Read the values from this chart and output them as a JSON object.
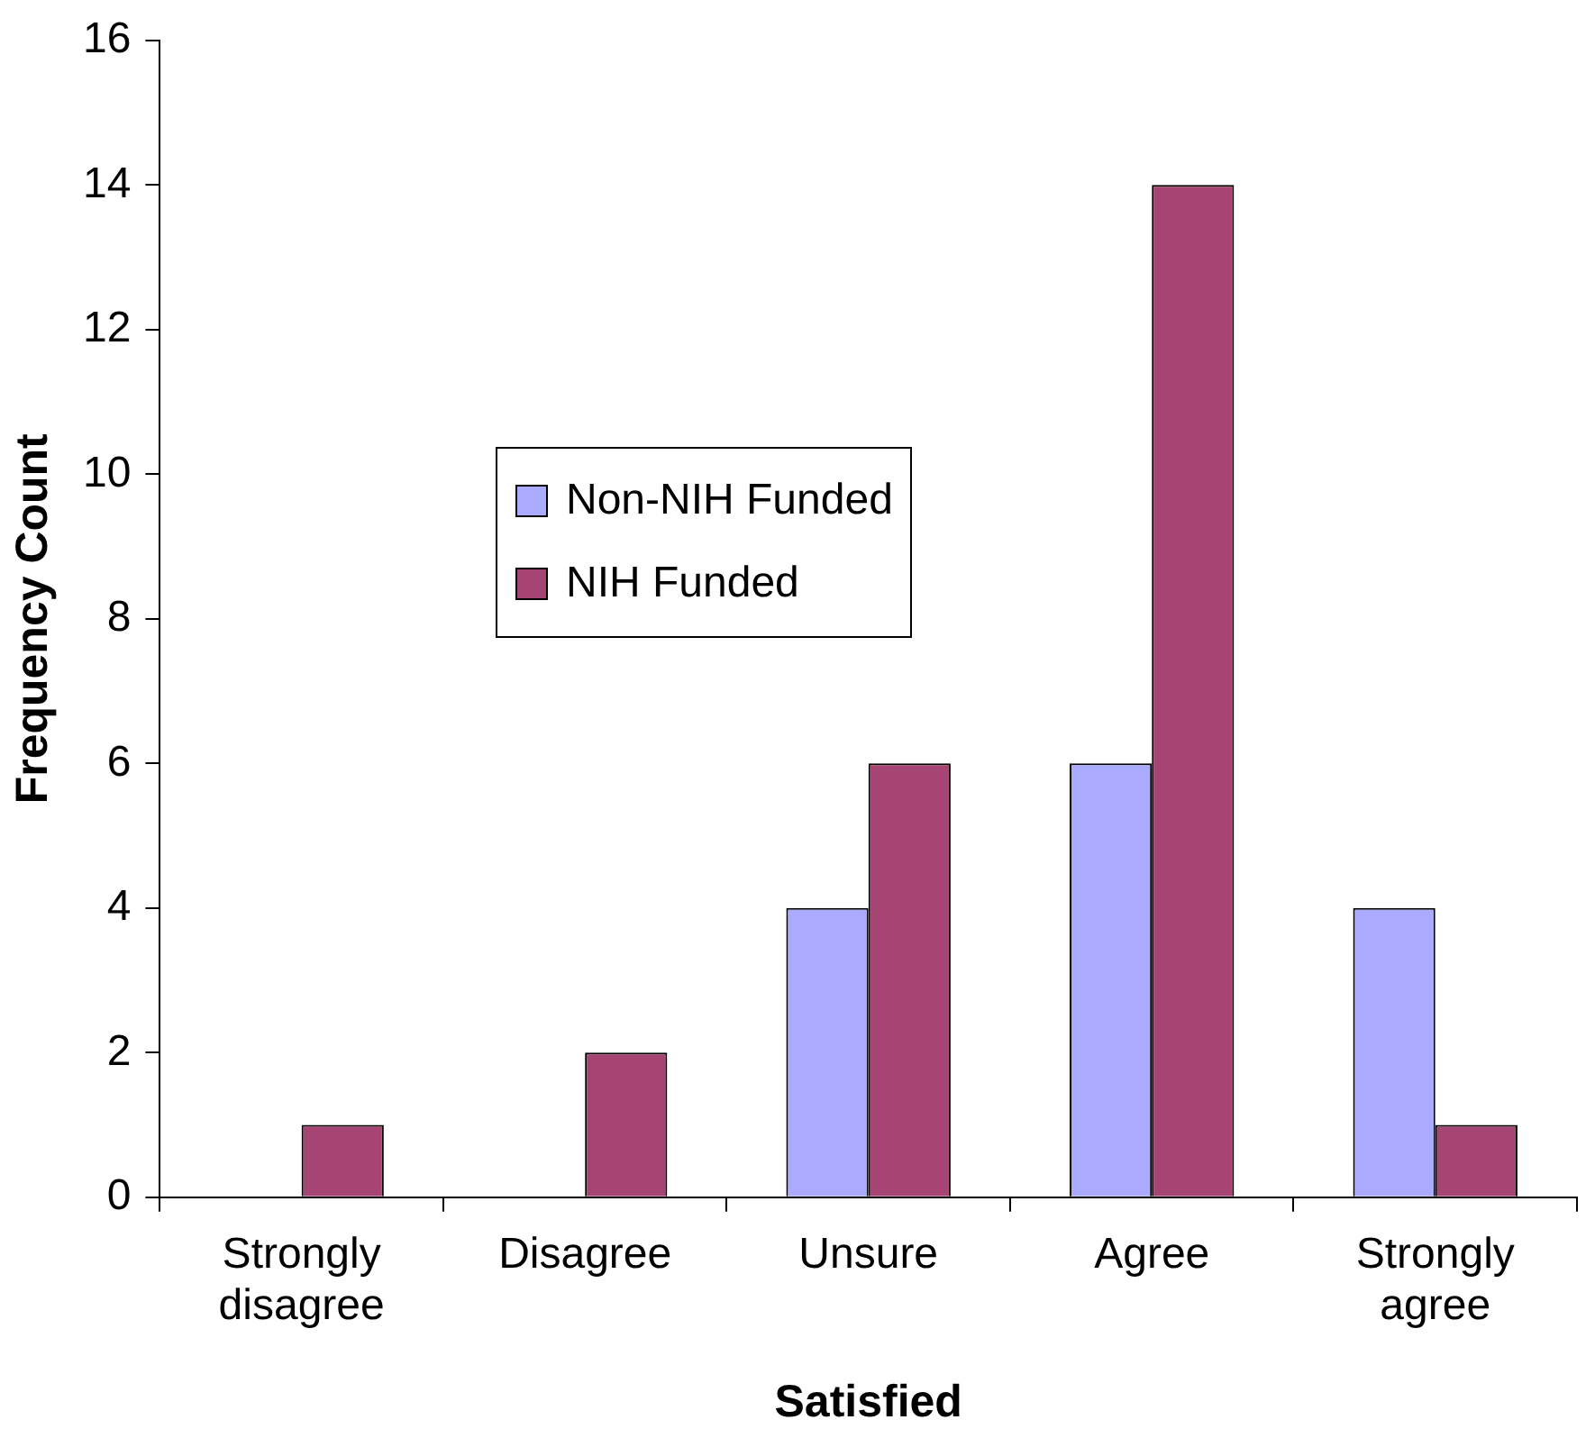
{
  "chart_data": {
    "type": "bar",
    "xlabel": "Satisfied",
    "ylabel": "Frequency Count",
    "categories": [
      "Strongly disagree",
      "Disagree",
      "Unsure",
      "Agree",
      "Strongly agree"
    ],
    "series": [
      {
        "name": "Non-NIH Funded",
        "color": "#aaaaff",
        "values": [
          0,
          0,
          4,
          6,
          4
        ]
      },
      {
        "name": "NIH Funded",
        "color": "#a64573",
        "values": [
          1,
          2,
          6,
          14,
          1
        ]
      }
    ],
    "ylim": [
      0,
      16
    ],
    "yticks": [
      0,
      2,
      4,
      6,
      8,
      10,
      12,
      14,
      16
    ],
    "grid": false,
    "legend": "center left"
  }
}
